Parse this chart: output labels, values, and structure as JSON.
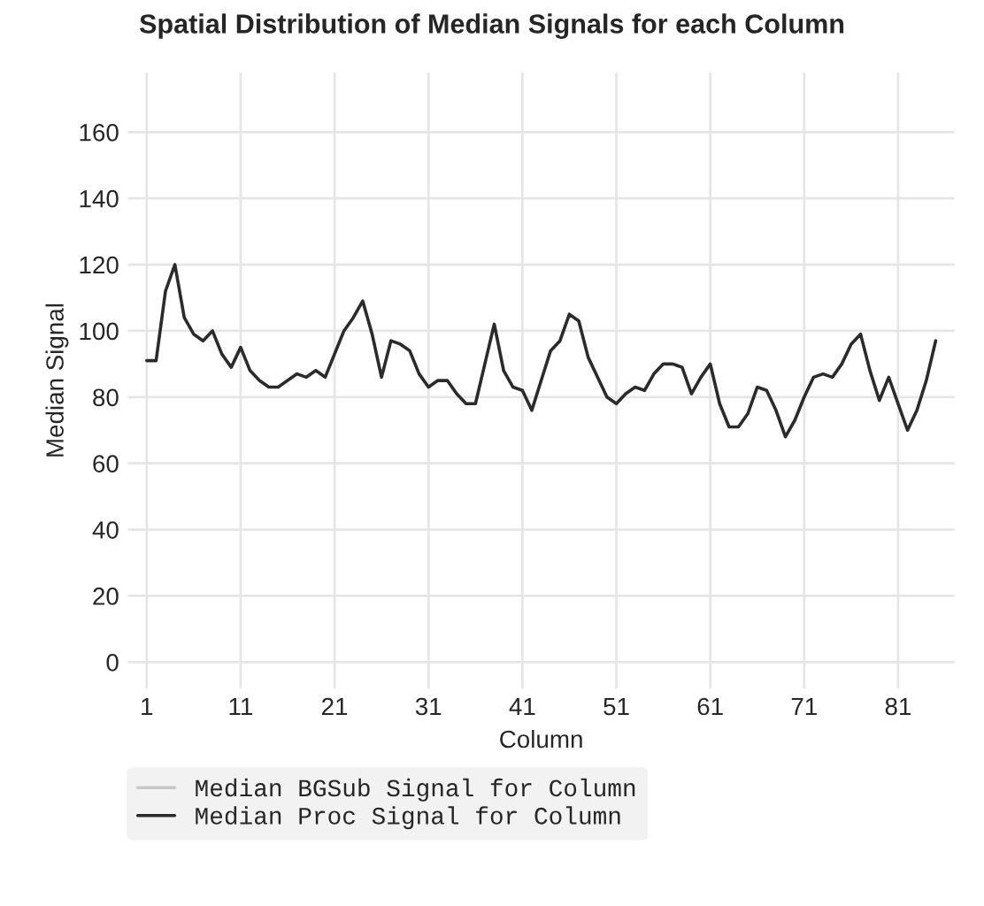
{
  "chart_data": {
    "type": "line",
    "title": "Spatial Distribution of Median Signals for each Column",
    "xlabel": "Column",
    "ylabel": "Median Signal",
    "x": [
      1,
      2,
      3,
      4,
      5,
      6,
      7,
      8,
      9,
      10,
      11,
      12,
      13,
      14,
      15,
      16,
      17,
      18,
      19,
      20,
      21,
      22,
      23,
      24,
      25,
      26,
      27,
      28,
      29,
      30,
      31,
      32,
      33,
      34,
      35,
      36,
      37,
      38,
      39,
      40,
      41,
      42,
      43,
      44,
      45,
      46,
      47,
      48,
      49,
      50,
      51,
      52,
      53,
      54,
      55,
      56,
      57,
      58,
      59,
      60,
      61,
      62,
      63,
      64,
      65,
      66,
      67,
      68,
      69,
      70,
      71,
      72,
      73,
      74,
      75,
      76,
      77,
      78,
      79,
      80,
      81,
      82,
      83,
      84,
      85
    ],
    "series": [
      {
        "name": "Median BGSub Signal for Column",
        "color": "#c8c8c8",
        "values": [
          null,
          null,
          null,
          null,
          null,
          null,
          null,
          null,
          null,
          null,
          null,
          null,
          null,
          null,
          null,
          null,
          null,
          null,
          null,
          null,
          null,
          null,
          null,
          null,
          null,
          null,
          null,
          null,
          null,
          null,
          null,
          null,
          null,
          null,
          null,
          null,
          null,
          null,
          null,
          null,
          null,
          null,
          null,
          null,
          null,
          null,
          null,
          null,
          null,
          null,
          null,
          null,
          null,
          null,
          null,
          null,
          null,
          null,
          null,
          null,
          null,
          null,
          null,
          null,
          null,
          null,
          null,
          null,
          null,
          null,
          null,
          null,
          null,
          null,
          null,
          null,
          null,
          null,
          null,
          null,
          null,
          null,
          null,
          null,
          null
        ]
      },
      {
        "name": "Median Proc Signal for Column",
        "color": "#2b2b2b",
        "values": [
          91,
          91,
          112,
          120,
          104,
          99,
          97,
          100,
          93,
          89,
          95,
          88,
          85,
          83,
          83,
          85,
          87,
          86,
          88,
          86,
          93,
          100,
          104,
          109,
          99,
          86,
          97,
          96,
          94,
          87,
          83,
          85,
          85,
          81,
          78,
          78,
          90,
          102,
          88,
          83,
          82,
          76,
          85,
          94,
          97,
          105,
          103,
          92,
          86,
          80,
          78,
          81,
          83,
          82,
          87,
          90,
          90,
          89,
          81,
          86,
          90,
          78,
          71,
          71,
          75,
          83,
          82,
          76,
          68,
          73,
          80,
          86,
          87,
          86,
          90,
          96,
          99,
          88,
          79,
          86,
          78,
          70,
          76,
          85,
          97
        ]
      }
    ],
    "xlim": [
      -1,
      87
    ],
    "ylim": [
      -8,
      178
    ],
    "xticks": [
      1,
      11,
      21,
      31,
      41,
      51,
      61,
      71,
      81
    ],
    "yticks": [
      0,
      20,
      40,
      60,
      80,
      100,
      120,
      140,
      160
    ],
    "grid": true,
    "legend": "bottom"
  }
}
